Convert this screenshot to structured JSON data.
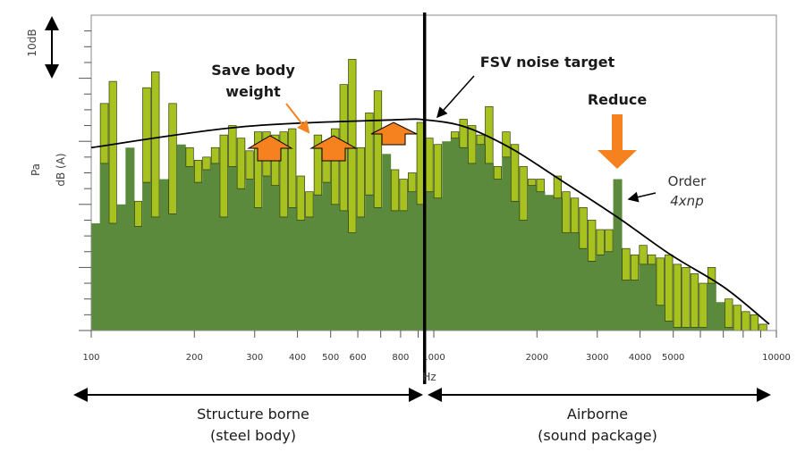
{
  "chart_data": {
    "type": "bar",
    "xscale": "log",
    "xlim": [
      100,
      10000
    ],
    "ylim": [
      0,
      50
    ],
    "xlabel": "Hz",
    "ylabel_lines": [
      "Pa",
      "dB (A)"
    ],
    "scale_bar_label": "10dB",
    "x_tick_labels": [
      "100",
      "200",
      "300",
      "400",
      "500",
      "600",
      "800",
      "1000",
      "2000",
      "3000",
      "4000",
      "5000",
      "10000"
    ],
    "x_tick_values": [
      100,
      200,
      300,
      400,
      500,
      600,
      700,
      800,
      900,
      1000,
      2000,
      3000,
      4000,
      5000,
      6000,
      7000,
      8000,
      9000,
      10000
    ],
    "bars": {
      "frequency_hz": [
        103,
        109,
        116,
        122,
        130,
        137,
        145,
        154,
        163,
        173,
        183,
        194,
        205,
        217,
        230,
        244,
        258,
        274,
        290,
        307,
        325,
        344,
        365,
        386,
        409,
        433,
        459,
        486,
        515,
        546,
        578,
        612,
        648,
        687,
        727,
        770,
        816,
        864,
        916,
        970,
        1027,
        1088,
        1152,
        1221,
        1293,
        1369,
        1451,
        1536,
        1627,
        1724,
        1826,
        1934,
        2048,
        2170,
        2298,
        2434,
        2578,
        2731,
        2893,
        3064,
        3245,
        3437,
        3641,
        3857,
        4085,
        4327,
        4583,
        4854,
        5142,
        5446,
        5769,
        6110,
        6472,
        6855,
        7261,
        7691,
        8146,
        8629,
        9140
      ],
      "dark_level_db": [
        17,
        26.5,
        17,
        20,
        29,
        16.5,
        23.5,
        18,
        24,
        18.5,
        29.5,
        26,
        23.5,
        25.5,
        26.5,
        18,
        26,
        22.5,
        24,
        19.5,
        24.5,
        23,
        18,
        19.5,
        17.5,
        18,
        21.5,
        23.5,
        20,
        19,
        15.5,
        18,
        21.5,
        19.5,
        28,
        19,
        19,
        22,
        20,
        22,
        21,
        30,
        30.5,
        29,
        26.5,
        29.5,
        26.5,
        24,
        27.5,
        20.5,
        17.5,
        23,
        22,
        21.5,
        21,
        15.5,
        15.5,
        13,
        11,
        12,
        12.5,
        24,
        8,
        8,
        10.5,
        10.5,
        4,
        1.5,
        0.5,
        0.5,
        0.5,
        0.5,
        7.5,
        4.5,
        0.5,
        0,
        0,
        0,
        0
      ],
      "light_top_db": [
        17,
        36,
        39.5,
        20,
        29,
        20.5,
        38.5,
        41,
        24,
        36,
        29.5,
        29,
        27,
        27.5,
        29,
        31,
        32.5,
        30.5,
        28.5,
        31.5,
        31.5,
        31,
        31.5,
        32,
        24.5,
        22,
        31,
        30,
        32,
        39,
        43,
        29,
        34.5,
        38,
        28,
        25.5,
        24,
        25,
        33,
        30.5,
        29.5,
        30,
        31.5,
        33.5,
        32.5,
        31,
        35.5,
        26,
        31.5,
        29.5,
        26,
        24,
        24,
        21.5,
        24.5,
        22,
        21,
        19.5,
        17.5,
        16,
        16,
        24,
        13,
        12,
        13.5,
        12,
        11.5,
        12,
        10.5,
        10,
        9,
        7.5,
        10,
        4.5,
        5,
        4,
        3,
        2.5,
        1
      ]
    },
    "target_curve": {
      "name": "FSV noise target",
      "points": [
        [
          100,
          29
        ],
        [
          275,
          32.3
        ],
        [
          763,
          33.4
        ],
        [
          942,
          33.4
        ],
        [
          1233,
          32.3
        ],
        [
          1667,
          29
        ],
        [
          2250,
          24.5
        ],
        [
          3428,
          18
        ],
        [
          4920,
          12
        ],
        [
          7060,
          6.8
        ],
        [
          9530,
          1
        ]
      ]
    },
    "divider_hz": 940,
    "annotations": {
      "save_weight_line1": "Save body",
      "save_weight_line2": "weight",
      "target_label": "FSV noise target",
      "reduce_label": "Reduce",
      "order_line1": "Order",
      "order_line2": "4xnp"
    },
    "regions": {
      "left_line1": "Structure borne",
      "left_line2": "(steel body)",
      "right_line1": "Airborne",
      "right_line2": "(sound package)"
    },
    "colors": {
      "bar_dark": "#5b8a3c",
      "bar_light": "#a7c21e",
      "arrow_orange": "#f5821f",
      "curve": "#000000"
    },
    "grid": false
  }
}
